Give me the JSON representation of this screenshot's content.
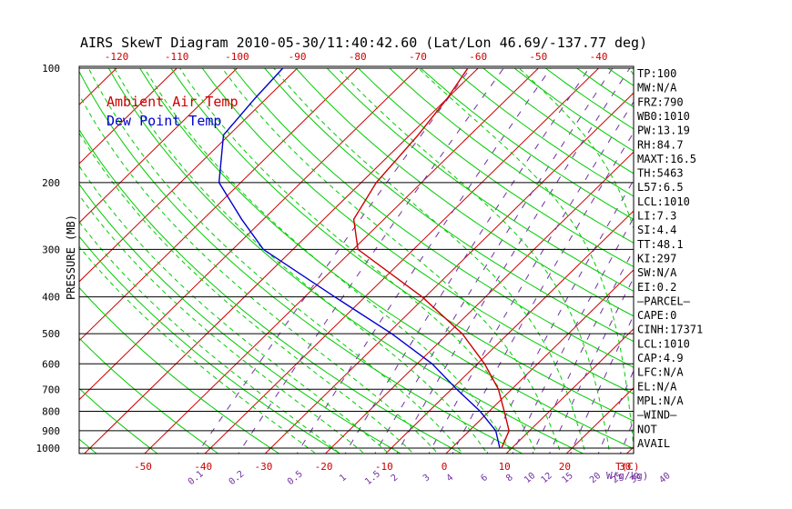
{
  "chart_data": {
    "type": "line",
    "title": "AIRS SkewT Diagram 2010-05-30/11:40:42.60 (Lat/Lon 46.69/-137.77 deg)",
    "ylabel": "PRESSURE (MB)",
    "xlabel_bottom": "T(C)",
    "xlabel_mixing": "W(g/kg)",
    "pressure_ticks": [
      100,
      200,
      300,
      400,
      500,
      600,
      700,
      800,
      900,
      1000
    ],
    "top_temp_ticks": [
      -120,
      -110,
      -100,
      -90,
      -80,
      -70,
      -60,
      -50,
      -40
    ],
    "bottom_temp_ticks": [
      -50,
      -40,
      -30,
      -20,
      -10,
      0,
      10,
      20,
      30
    ],
    "mixing_ratio_ticks": [
      "0.1",
      "0.2",
      "0.5",
      "1",
      "1.5",
      "2",
      "3",
      "4",
      "6",
      "8",
      "10",
      "12",
      "15",
      "20",
      "25",
      "30",
      "40"
    ],
    "legend_position": "top-left",
    "series": [
      {
        "name": "Ambient Air Temp",
        "color": "#cc0000",
        "points": [
          {
            "p": 1000,
            "t": 8.3
          },
          {
            "p": 900,
            "t": 6.6
          },
          {
            "p": 800,
            "t": 2.5
          },
          {
            "p": 700,
            "t": -2.2
          },
          {
            "p": 600,
            "t": -8.8
          },
          {
            "p": 500,
            "t": -17.6
          },
          {
            "p": 400,
            "t": -30.5
          },
          {
            "p": 300,
            "t": -49.2
          },
          {
            "p": 250,
            "t": -55.0
          },
          {
            "p": 200,
            "t": -57.5
          },
          {
            "p": 150,
            "t": -58.6
          },
          {
            "p": 120,
            "t": -60.0
          },
          {
            "p": 100,
            "t": -61.7
          }
        ]
      },
      {
        "name": "Dew Point Temp",
        "color": "#0000cc",
        "points": [
          {
            "p": 1000,
            "t": 8.0
          },
          {
            "p": 900,
            "t": 4.4
          },
          {
            "p": 800,
            "t": -1.5
          },
          {
            "p": 700,
            "t": -9.1
          },
          {
            "p": 600,
            "t": -17.5
          },
          {
            "p": 500,
            "t": -29.3
          },
          {
            "p": 400,
            "t": -45.0
          },
          {
            "p": 300,
            "t": -64.9
          },
          {
            "p": 250,
            "t": -73.6
          },
          {
            "p": 200,
            "t": -83.6
          },
          {
            "p": 150,
            "t": -90.9
          },
          {
            "p": 120,
            "t": -91.9
          },
          {
            "p": 100,
            "t": -92.4
          }
        ]
      }
    ],
    "indices": [
      "TP:100",
      "MW:N/A",
      "FRZ:790",
      "WB0:1010",
      "PW:13.19",
      "RH:84.7",
      "MAXT:16.5",
      "TH:5463",
      "L57:6.5",
      "LCL:1010",
      "LI:7.3",
      "SI:4.4",
      "TT:48.1",
      "KI:297",
      "SW:N/A",
      "EI:0.2",
      "—PARCEL—",
      "CAPE:0",
      "CINH:17371",
      "LCL:1010",
      "CAP:4.9",
      "LFC:N/A",
      "EL:N/A",
      "MPL:N/A",
      "—WIND—",
      "NOT",
      "AVAIL"
    ],
    "colors": {
      "isotherm": "#cc0000",
      "dry_adiabat": "#00cc00",
      "moist_adiabat": "#00cc00",
      "mixing_ratio": "#7030a0",
      "isobar": "#000000",
      "temp_ticks": "#cc0000",
      "mixing_ticks": "#7030a0"
    }
  }
}
